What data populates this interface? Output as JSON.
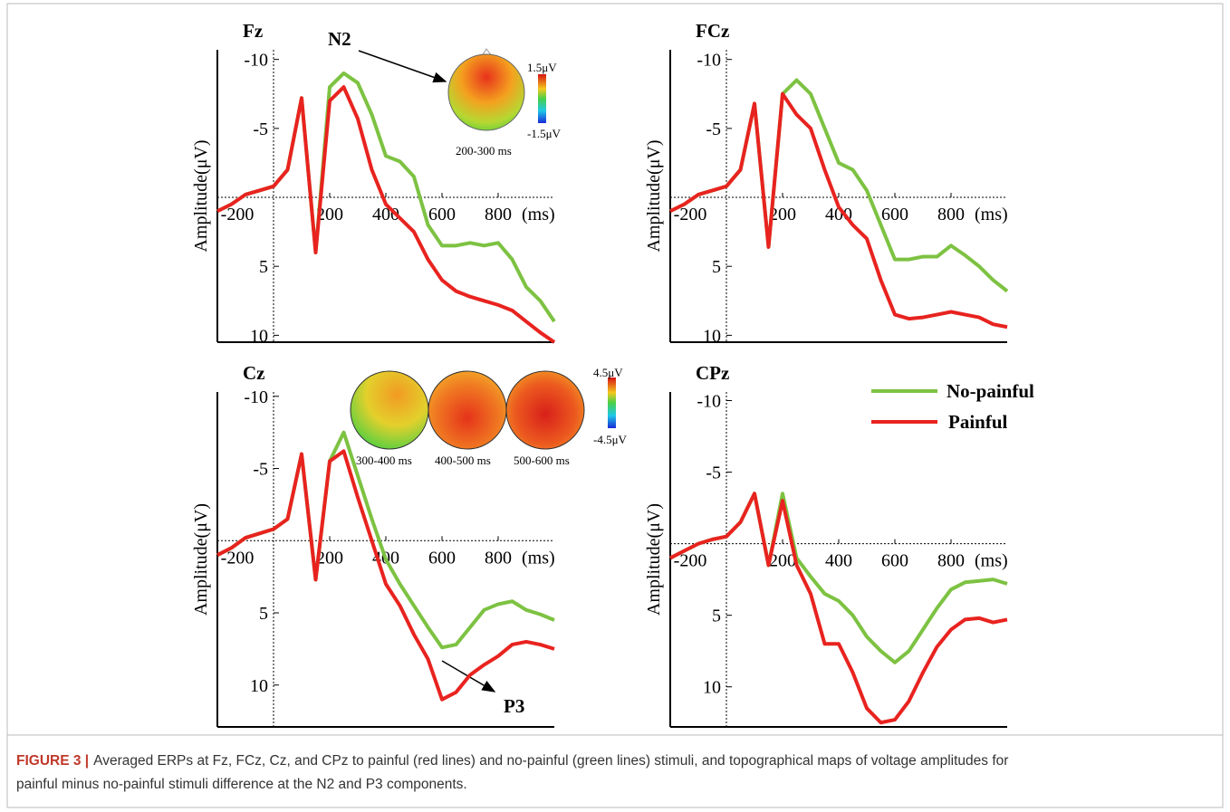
{
  "chart_data": [
    {
      "type": "line",
      "title": "Fz",
      "ylabel": "Amplitude(μV)",
      "xlabel": "(ms)",
      "y_inverted": true,
      "xlim": [
        -200,
        1000
      ],
      "ylim": [
        -10.7,
        10.5
      ],
      "xticks": [
        -200,
        200,
        400,
        600,
        800
      ],
      "yticks": [
        -10,
        -5,
        5,
        10
      ],
      "x": [
        -200,
        -150,
        -100,
        -50,
        0,
        50,
        100,
        150,
        200,
        250,
        300,
        350,
        400,
        450,
        500,
        550,
        600,
        650,
        700,
        750,
        800,
        850,
        900,
        950,
        1000
      ],
      "series": [
        {
          "color": "#7dc242",
          "values": [
            1,
            0.5,
            -0.2,
            -0.5,
            -0.8,
            -2,
            -7.2,
            4,
            -8,
            -9,
            -8.3,
            -6,
            -3,
            -2.6,
            -1.5,
            2,
            3.5,
            3.5,
            3.3,
            3.5,
            3.3,
            4.5,
            6.5,
            7.5,
            9
          ]
        },
        {
          "color": "#e8231f",
          "values": [
            1,
            0.5,
            -0.2,
            -0.5,
            -0.8,
            -2,
            -7.2,
            4,
            -7,
            -8,
            -5.7,
            -2,
            0.5,
            1.5,
            2.5,
            4.5,
            6,
            6.8,
            7.2,
            7.5,
            7.8,
            8.2,
            9,
            9.8,
            10.5
          ]
        }
      ],
      "annotations": [
        "N2",
        "1.5μV",
        "-1.5μV",
        "200-300 ms"
      ]
    },
    {
      "type": "line",
      "title": "FCz",
      "ylabel": "Amplitude(μV)",
      "xlabel": "(ms)",
      "y_inverted": true,
      "xlim": [
        -200,
        1000
      ],
      "ylim": [
        -10.7,
        10.5
      ],
      "xticks": [
        -200,
        200,
        400,
        600,
        800
      ],
      "yticks": [
        -10,
        -5,
        5,
        10
      ],
      "x": [
        -200,
        -150,
        -100,
        -50,
        0,
        50,
        100,
        150,
        200,
        250,
        300,
        350,
        400,
        450,
        500,
        550,
        600,
        650,
        700,
        750,
        800,
        850,
        900,
        950,
        1000
      ],
      "series": [
        {
          "color": "#7dc242",
          "values": [
            1,
            0.5,
            -0.2,
            -0.5,
            -0.8,
            -2,
            -6.8,
            3.6,
            -7.5,
            -8.5,
            -7.5,
            -5,
            -2.5,
            -2,
            -0.5,
            2,
            4.5,
            4.5,
            4.3,
            4.3,
            3.5,
            4.2,
            5,
            6,
            6.8
          ]
        },
        {
          "color": "#e8231f",
          "values": [
            1,
            0.5,
            -0.2,
            -0.5,
            -0.8,
            -2,
            -6.8,
            3.6,
            -7.5,
            -6,
            -5,
            -2,
            0.7,
            2,
            3,
            6,
            8.5,
            8.8,
            8.7,
            8.5,
            8.3,
            8.5,
            8.7,
            9.2,
            9.4
          ]
        }
      ]
    },
    {
      "type": "line",
      "title": "Cz",
      "ylabel": "Amplitude(μV)",
      "xlabel": "(ms)",
      "y_inverted": true,
      "xlim": [
        -200,
        1000
      ],
      "ylim": [
        -10.3,
        12.9
      ],
      "xticks": [
        -200,
        200,
        400,
        600,
        800
      ],
      "yticks": [
        -10,
        -5,
        5,
        10
      ],
      "x": [
        -200,
        -150,
        -100,
        -50,
        0,
        50,
        100,
        150,
        200,
        250,
        300,
        350,
        400,
        450,
        500,
        550,
        600,
        650,
        700,
        750,
        800,
        850,
        900,
        950,
        1000
      ],
      "series": [
        {
          "color": "#7dc242",
          "values": [
            1,
            0.5,
            -0.2,
            -0.5,
            -0.8,
            -1.5,
            -6,
            2.7,
            -5.5,
            -7.5,
            -4.5,
            -1.5,
            1.3,
            3,
            4.5,
            6,
            7.4,
            7.2,
            6,
            4.8,
            4.4,
            4.2,
            4.8,
            5.1,
            5.5
          ]
        },
        {
          "color": "#e8231f",
          "values": [
            1,
            0.5,
            -0.2,
            -0.5,
            -0.8,
            -1.5,
            -6,
            2.7,
            -5.5,
            -6.2,
            -3,
            0,
            3,
            4.5,
            6.5,
            8.2,
            11,
            10.5,
            9.3,
            8.6,
            8,
            7.2,
            7,
            7.2,
            7.5
          ]
        }
      ],
      "annotations": [
        "P3",
        "4.5μV",
        "-4.5μV",
        "300-400 ms",
        "400-500 ms",
        "500-600 ms"
      ]
    },
    {
      "type": "line",
      "title": "CPz",
      "ylabel": "Amplitude(μV)",
      "xlabel": "(ms)",
      "y_inverted": true,
      "xlim": [
        -200,
        1000
      ],
      "ylim": [
        -10.6,
        12.8
      ],
      "xticks": [
        -200,
        200,
        400,
        600,
        800
      ],
      "yticks": [
        -10,
        -5,
        5,
        10
      ],
      "x": [
        -200,
        -150,
        -100,
        -50,
        0,
        50,
        100,
        150,
        200,
        250,
        300,
        350,
        400,
        450,
        500,
        550,
        600,
        650,
        700,
        750,
        800,
        850,
        900,
        950,
        1000
      ],
      "series": [
        {
          "name": "No-painful",
          "color": "#7dc242",
          "values": [
            1,
            0.5,
            0,
            -0.3,
            -0.5,
            -1.5,
            -3.5,
            1.5,
            -3.5,
            1,
            2.3,
            3.5,
            4,
            5,
            6.5,
            7.5,
            8.3,
            7.5,
            6,
            4.5,
            3.2,
            2.7,
            2.6,
            2.5,
            2.8
          ]
        },
        {
          "name": "Painful",
          "color": "#e8231f",
          "values": [
            1,
            0.5,
            0,
            -0.3,
            -0.5,
            -1.5,
            -3.5,
            1.5,
            -3,
            1.5,
            3.5,
            7,
            7,
            9,
            11.5,
            12.5,
            12.3,
            11,
            9,
            7.2,
            6,
            5.3,
            5.2,
            5.5,
            5.3
          ]
        }
      ]
    }
  ],
  "caption": {
    "label": "FIGURE 3 |",
    "lines": [
      "Averaged ERPs at Fz, FCz, Cz, and CPz to painful (red lines) and no-painful (green lines) stimuli, and topographical maps of voltage amplitudes for",
      "painful minus no-painful stimuli difference at the N2 and P3 components."
    ]
  }
}
